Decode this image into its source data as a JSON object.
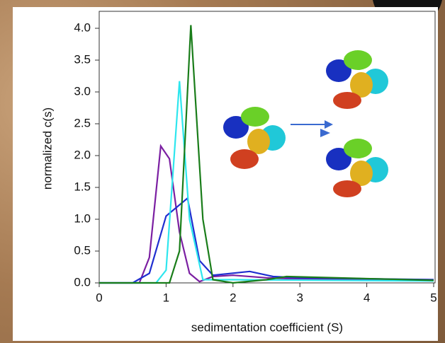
{
  "chart_data": {
    "type": "line",
    "xlabel": "sedimentation coefficient (S)",
    "ylabel": "normalized c(s)",
    "xlim": [
      0,
      5
    ],
    "ylim": [
      0,
      4.2
    ],
    "xticks": [
      0,
      1,
      2,
      3,
      4,
      5
    ],
    "yticks": [
      {
        "value": 0,
        "label": "0.0"
      },
      {
        "value": 0.5,
        "label": "0.5"
      },
      {
        "value": 1,
        "label": "1.0"
      },
      {
        "value": 1.5,
        "label": "1.5"
      },
      {
        "value": 2,
        "label": "2.0"
      },
      {
        "value": 2.5,
        "label": "2.5"
      },
      {
        "value": 3,
        "label": "3.0"
      },
      {
        "value": 3.5,
        "label": "3.5"
      },
      {
        "value": 4,
        "label": "4.0"
      }
    ],
    "series": [
      {
        "color": "#7b1fa2",
        "x": [
          0,
          0.6,
          0.75,
          0.92,
          1.05,
          1.2,
          1.35,
          1.5,
          1.7,
          2.0,
          2.5,
          3,
          5
        ],
        "values": [
          0,
          0,
          0.4,
          2.15,
          1.95,
          0.8,
          0.15,
          0.02,
          0.1,
          0.12,
          0.08,
          0.06,
          0.05
        ]
      },
      {
        "color": "#1f2ed0",
        "x": [
          0,
          0.5,
          0.75,
          1.0,
          1.32,
          1.5,
          1.7,
          2.25,
          2.6,
          3,
          5
        ],
        "values": [
          0,
          0,
          0.15,
          1.05,
          1.33,
          0.35,
          0.12,
          0.18,
          0.1,
          0.08,
          0.05
        ]
      },
      {
        "color": "#2ee6ee",
        "x": [
          0,
          0.85,
          1.0,
          1.2,
          1.35,
          1.55,
          2.0,
          5
        ],
        "values": [
          0,
          0,
          0.2,
          3.17,
          1.0,
          0.05,
          0.05,
          0.03
        ]
      },
      {
        "color": "#1a7d1a",
        "x": [
          0,
          1.05,
          1.2,
          1.37,
          1.55,
          1.7,
          2.0,
          2.5,
          2.8,
          5
        ],
        "values": [
          0,
          0,
          0.5,
          4.05,
          1.0,
          0.05,
          0,
          0.05,
          0.1,
          0.04
        ]
      }
    ]
  }
}
